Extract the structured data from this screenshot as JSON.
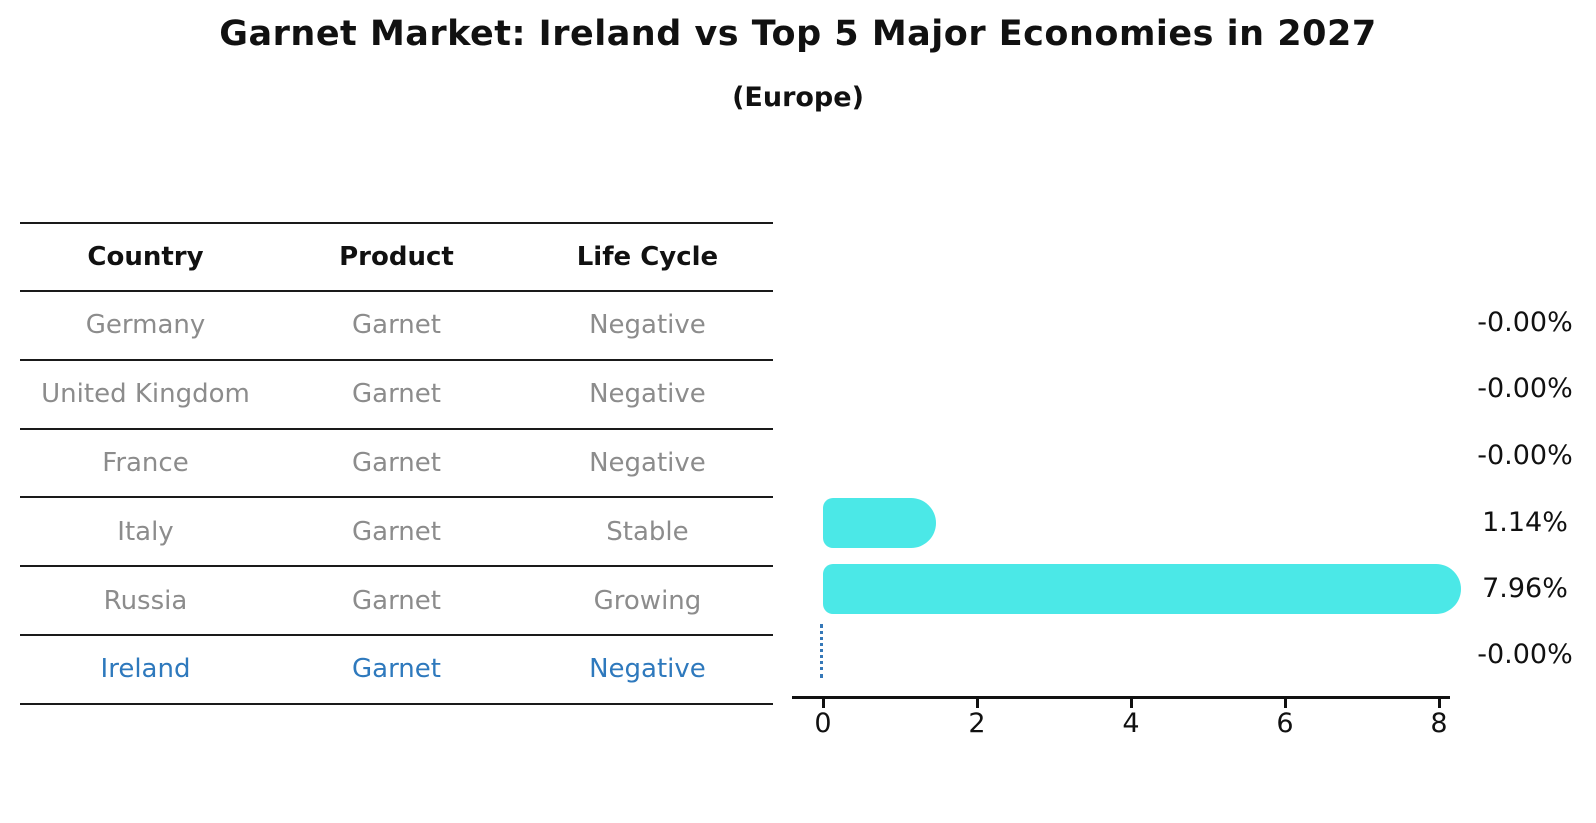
{
  "page": {
    "title": "Garnet Market: Ireland vs Top 5 Major Economies in 2027",
    "subtitle": "(Europe)"
  },
  "table": {
    "columns": [
      "Country",
      "Product",
      "Life Cycle"
    ],
    "rows": [
      {
        "country": "Germany",
        "product": "Garnet",
        "life_cycle": "Negative",
        "highlight": false
      },
      {
        "country": "United Kingdom",
        "product": "Garnet",
        "life_cycle": "Negative",
        "highlight": false
      },
      {
        "country": "France",
        "product": "Garnet",
        "life_cycle": "Negative",
        "highlight": false
      },
      {
        "country": "Italy",
        "product": "Garnet",
        "life_cycle": "Stable",
        "highlight": false
      },
      {
        "country": "Russia",
        "product": "Garnet",
        "life_cycle": "Growing",
        "highlight": false
      },
      {
        "country": "Ireland",
        "product": "Garnet",
        "life_cycle": "Negative",
        "highlight": true
      }
    ]
  },
  "chart_data": {
    "type": "bar",
    "orientation": "horizontal",
    "title": "Garnet Market: Ireland vs Top 5 Major Economies in 2027",
    "subtitle": "(Europe)",
    "categories": [
      "Germany",
      "United Kingdom",
      "France",
      "Italy",
      "Russia",
      "Ireland"
    ],
    "values": [
      -0.0,
      -0.0,
      -0.0,
      1.14,
      7.96,
      -0.0
    ],
    "value_labels": [
      "-0.00%",
      "-0.00%",
      "-0.00%",
      "1.14%",
      "7.96%",
      "-0.00%"
    ],
    "x_ticks": [
      "0",
      "2",
      "4",
      "6",
      "8"
    ],
    "xlim": [
      0,
      8.2
    ],
    "grid": false,
    "legend": "none",
    "bar_color": "#4be8e7",
    "highlight_country": "Ireland",
    "highlight_color": "#2e79bd",
    "zero_marker_color": "#3578b8",
    "zero_marker_style": "dotted-vertical-line-at-0"
  }
}
